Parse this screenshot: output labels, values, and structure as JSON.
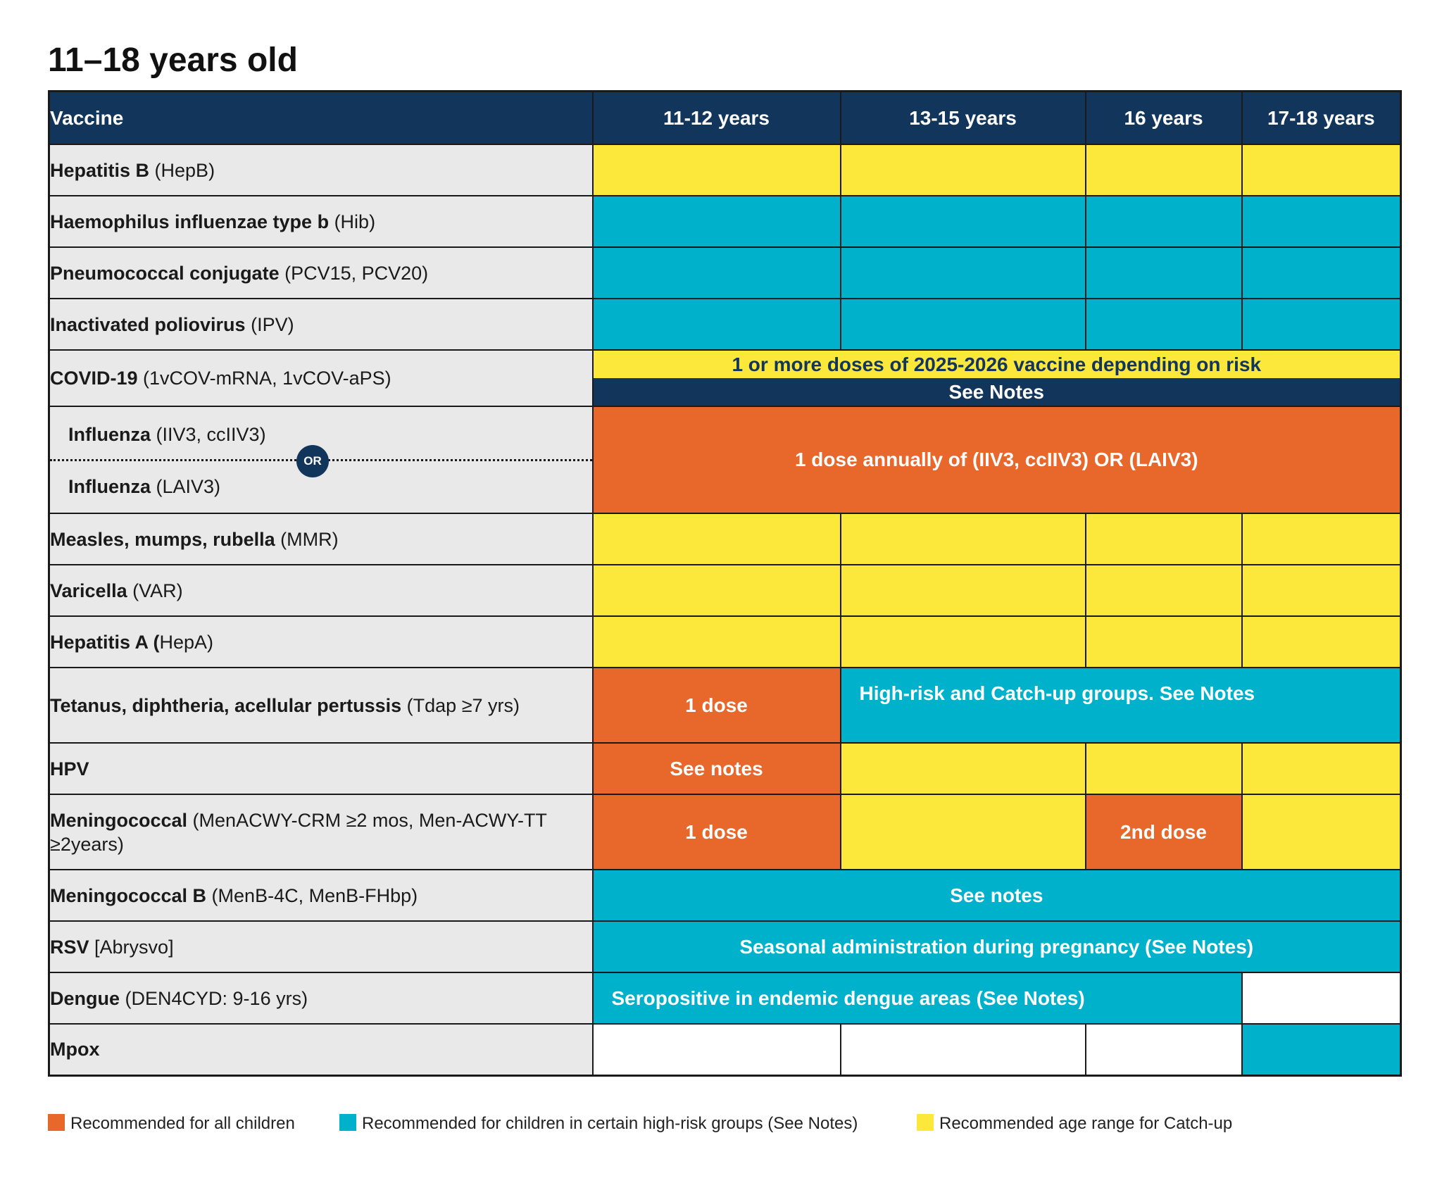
{
  "title": "11–18 years old",
  "header": {
    "vaccine": "Vaccine",
    "ages": [
      "11-12 years",
      "13-15 years",
      "16 years",
      "17-18 years"
    ]
  },
  "rows": {
    "hepb": {
      "name": "Hepatitis B",
      "paren": " (HepB)"
    },
    "hib": {
      "name": "Haemophilus influenzae type b",
      "paren": " (Hib)"
    },
    "pcv": {
      "name": "Pneumococcal conjugate",
      "paren": " (PCV15, PCV20)"
    },
    "ipv": {
      "name": "Inactivated poliovirus",
      "paren": " (IPV)"
    },
    "covid": {
      "name": "COVID-19",
      "paren": " (1vCOV-mRNA, 1vCOV-aPS)",
      "top": "1 or more doses of 2025-2026 vaccine depending on risk",
      "bottom": "See Notes"
    },
    "flu": {
      "name_a": "Influenza",
      "paren_a": " (IIV3, ccIIV3)",
      "or": "OR",
      "name_b": "Influenza",
      "paren_b": " (LAIV3)",
      "span": "1 dose annually of (IIV3, ccIIV3) OR (LAIV3)"
    },
    "mmr": {
      "name": "Measles, mumps, rubella",
      "paren": " (MMR)"
    },
    "var": {
      "name": "Varicella",
      "paren": " (VAR)"
    },
    "hepa": {
      "name": "Hepatitis A (",
      "paren": "HepA)"
    },
    "tdap": {
      "name": "Tetanus, diphtheria, acellular pertussis",
      "paren": " (Tdap ≥7 yrs)",
      "c1": "1 dose",
      "span": "High-risk and Catch-up groups. See Notes"
    },
    "hpv": {
      "name": "HPV",
      "c1": "See notes"
    },
    "men": {
      "name": "Meningococcal",
      "paren": " (MenACWY-CRM ≥2 mos, Men-ACWY-TT ≥2years)",
      "c1": "1 dose",
      "c3": "2nd dose"
    },
    "menb": {
      "name": "Meningococcal B",
      "paren": " (MenB-4C, MenB-FHbp)",
      "span": "See notes"
    },
    "rsv": {
      "name": "RSV",
      "paren": " [Abrysvo]",
      "span": "Seasonal administration during pregnancy (See Notes)"
    },
    "dengue": {
      "name": "Dengue",
      "paren": " (DEN4CYD: 9-16 yrs)",
      "span": "Seropositive in endemic dengue areas (See Notes)"
    },
    "mpox": {
      "name": "Mpox"
    }
  },
  "legend": [
    {
      "label": "Recommended for all children",
      "color": "#e8672a"
    },
    {
      "label": "Recommended for children in certain high-risk groups (See Notes)",
      "color": "#00b1cb"
    },
    {
      "label": "Recommended age range for Catch-up",
      "color": "#fbe83a"
    }
  ],
  "colors": {
    "orange": "#e8672a",
    "teal": "#00b1cb",
    "yellow": "#fbe83a",
    "navy": "#12355b"
  }
}
